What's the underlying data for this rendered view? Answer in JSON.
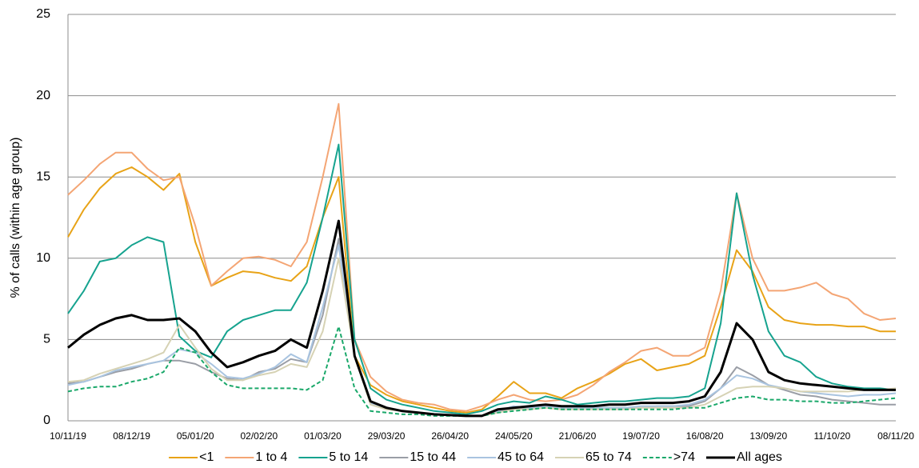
{
  "chart_data": {
    "type": "line",
    "y_label": "% of calls (within age group)",
    "x": [
      "10/11/19",
      "17/11/19",
      "24/11/19",
      "01/12/19",
      "08/12/19",
      "15/12/19",
      "22/12/19",
      "29/12/19",
      "05/01/20",
      "12/01/20",
      "19/01/20",
      "26/01/20",
      "02/02/20",
      "09/02/20",
      "16/02/20",
      "23/02/20",
      "01/03/20",
      "08/03/20",
      "15/03/20",
      "22/03/20",
      "29/03/20",
      "05/04/20",
      "12/04/20",
      "19/04/20",
      "26/04/20",
      "03/05/20",
      "10/05/20",
      "17/05/20",
      "24/05/20",
      "31/05/20",
      "07/06/20",
      "14/06/20",
      "21/06/20",
      "28/06/20",
      "05/07/20",
      "12/07/20",
      "19/07/20",
      "26/07/20",
      "02/08/20",
      "09/08/20",
      "16/08/20",
      "23/08/20",
      "30/08/20",
      "06/09/20",
      "13/09/20",
      "20/09/20",
      "27/09/20",
      "04/10/20",
      "11/10/20",
      "18/10/20",
      "25/10/20",
      "01/11/20",
      "08/11/20"
    ],
    "xticks": [
      "10/11/19",
      "08/12/19",
      "05/01/20",
      "02/02/20",
      "01/03/20",
      "29/03/20",
      "26/04/20",
      "24/05/20",
      "21/06/20",
      "19/07/20",
      "16/08/20",
      "13/09/20",
      "11/10/20",
      "08/11/20"
    ],
    "ylim": [
      0,
      25
    ],
    "yticks": [
      0,
      5,
      10,
      15,
      20,
      25
    ],
    "grid": true,
    "series": [
      {
        "name": "<1",
        "color": "#e8a317",
        "values": [
          11.3,
          13,
          14.3,
          15.2,
          15.6,
          15,
          14.2,
          15.2,
          11,
          8.3,
          8.8,
          9.2,
          9.1,
          8.8,
          8.6,
          9.5,
          12.5,
          15,
          4,
          2.2,
          1.6,
          1.2,
          1,
          0.8,
          0.6,
          0.5,
          0.7,
          1.5,
          2.4,
          1.7,
          1.7,
          1.4,
          2,
          2.4,
          2.9,
          3.5,
          3.8,
          3.1,
          3.3,
          3.5,
          4,
          7,
          10.5,
          9.2,
          7,
          6.2,
          6,
          5.9,
          5.9,
          5.8,
          5.8,
          5.5,
          5.5
        ]
      },
      {
        "name": "1 to 4",
        "color": "#f4a574",
        "values": [
          13.9,
          14.8,
          15.8,
          16.5,
          16.5,
          15.5,
          14.8,
          15,
          12,
          8.3,
          9.2,
          10,
          10.1,
          9.9,
          9.5,
          11,
          15,
          19.5,
          5,
          2.7,
          1.8,
          1.3,
          1.1,
          1,
          0.7,
          0.6,
          0.9,
          1.3,
          1.6,
          1.3,
          1.2,
          1.3,
          1.6,
          2.2,
          3,
          3.6,
          4.3,
          4.5,
          4,
          4,
          4.5,
          8,
          14,
          10,
          8,
          8,
          8.2,
          8.5,
          7.8,
          7.5,
          6.6,
          6.2,
          6.3
        ]
      },
      {
        "name": "5 to 14",
        "color": "#16a38f",
        "values": [
          6.6,
          8,
          9.8,
          10,
          10.8,
          11.3,
          11,
          5.2,
          4.3,
          3.9,
          5.5,
          6.2,
          6.5,
          6.8,
          6.8,
          8.5,
          12.5,
          17,
          5,
          2,
          1.3,
          1,
          0.8,
          0.6,
          0.5,
          0.4,
          0.6,
          1,
          1.2,
          1.1,
          1.5,
          1.3,
          1,
          1.1,
          1.2,
          1.2,
          1.3,
          1.4,
          1.4,
          1.5,
          2,
          6,
          14,
          9,
          5.5,
          4,
          3.6,
          2.7,
          2.3,
          2.1,
          2,
          2,
          1.9
        ]
      },
      {
        "name": "15 to 44",
        "color": "#9a9ea6",
        "values": [
          2.3,
          2.4,
          2.7,
          3,
          3.2,
          3.5,
          3.7,
          3.7,
          3.5,
          3,
          2.6,
          2.5,
          3,
          3.2,
          3.8,
          3.6,
          6.5,
          11.2,
          4,
          1.2,
          0.8,
          0.6,
          0.5,
          0.4,
          0.35,
          0.3,
          0.3,
          0.6,
          0.8,
          0.8,
          0.9,
          0.8,
          0.8,
          0.8,
          0.8,
          0.8,
          0.8,
          0.9,
          0.9,
          0.9,
          1.2,
          2,
          3.3,
          2.8,
          2.2,
          1.9,
          1.6,
          1.5,
          1.3,
          1.2,
          1.1,
          1,
          1
        ]
      },
      {
        "name": "45 to 64",
        "color": "#a9c4e0",
        "values": [
          2.2,
          2.4,
          2.7,
          3.1,
          3.3,
          3.5,
          3.7,
          4.4,
          4.2,
          3.5,
          2.7,
          2.6,
          2.9,
          3.3,
          4.1,
          3.6,
          7,
          10.8,
          4,
          1.1,
          0.8,
          0.6,
          0.5,
          0.4,
          0.35,
          0.3,
          0.3,
          0.6,
          0.9,
          0.8,
          0.9,
          0.8,
          0.8,
          0.8,
          0.8,
          0.8,
          0.9,
          0.9,
          0.9,
          1,
          1.3,
          2,
          2.8,
          2.6,
          2.2,
          2,
          1.8,
          1.7,
          1.6,
          1.5,
          1.6,
          1.6,
          1.7
        ]
      },
      {
        "name": "65 to 74",
        "color": "#d6d2b4",
        "values": [
          2.4,
          2.5,
          2.9,
          3.2,
          3.5,
          3.8,
          4.2,
          5.9,
          4.5,
          3.2,
          2.5,
          2.5,
          2.8,
          3,
          3.5,
          3.3,
          5.5,
          10,
          4,
          1,
          0.7,
          0.6,
          0.5,
          0.4,
          0.35,
          0.3,
          0.3,
          0.5,
          0.7,
          0.7,
          0.8,
          0.7,
          0.7,
          0.7,
          0.7,
          0.7,
          0.8,
          0.8,
          0.8,
          0.8,
          1,
          1.5,
          2,
          2.1,
          2.1,
          2,
          1.8,
          1.8,
          1.8,
          1.8,
          1.9,
          1.9,
          2
        ]
      },
      {
        "name": ">74",
        "color": "#1aa86a",
        "dashed": true,
        "values": [
          1.8,
          2,
          2.1,
          2.1,
          2.4,
          2.6,
          3,
          4.5,
          4.2,
          3,
          2.2,
          2,
          2,
          2,
          2,
          1.9,
          2.5,
          5.8,
          2,
          0.6,
          0.5,
          0.4,
          0.4,
          0.3,
          0.3,
          0.3,
          0.3,
          0.5,
          0.6,
          0.7,
          0.8,
          0.7,
          0.7,
          0.7,
          0.7,
          0.7,
          0.7,
          0.7,
          0.7,
          0.8,
          0.8,
          1.1,
          1.4,
          1.5,
          1.3,
          1.3,
          1.2,
          1.2,
          1.1,
          1.1,
          1.2,
          1.3,
          1.4
        ]
      },
      {
        "name": "All ages",
        "color": "#000000",
        "bold": true,
        "values": [
          4.5,
          5.3,
          5.9,
          6.3,
          6.5,
          6.2,
          6.2,
          6.3,
          5.5,
          4.2,
          3.3,
          3.6,
          4,
          4.3,
          5,
          4.5,
          8,
          12.3,
          4,
          1.2,
          0.8,
          0.6,
          0.5,
          0.4,
          0.35,
          0.3,
          0.3,
          0.7,
          0.8,
          0.9,
          1,
          0.9,
          0.9,
          0.9,
          1,
          1,
          1.1,
          1.1,
          1.1,
          1.2,
          1.5,
          3,
          6,
          5,
          3,
          2.5,
          2.3,
          2.2,
          2.1,
          2,
          1.9,
          1.9,
          1.9
        ]
      }
    ]
  }
}
